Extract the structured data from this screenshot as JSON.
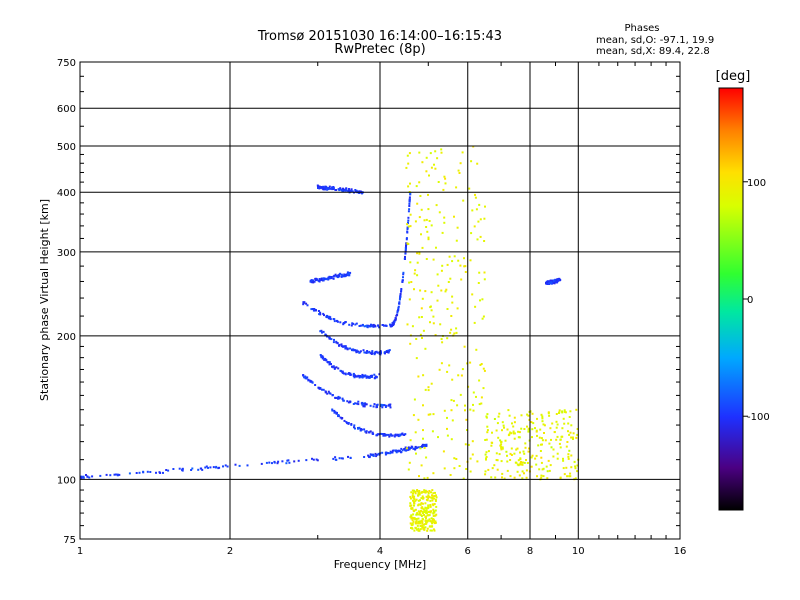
{
  "chart_data": {
    "type": "scatter",
    "title": "Tromsø 20151030 16:14:00–16:15:43",
    "subtitle": "RwPretec (8p)",
    "xlabel": "Frequency [MHz]",
    "ylabel": "Stationary phase Virtual Height [km]",
    "x_scale": "log",
    "y_scale": "log",
    "xlim": [
      1,
      16
    ],
    "ylim": [
      75,
      750
    ],
    "x_ticks": [
      1,
      2,
      4,
      6,
      8,
      10,
      16
    ],
    "x_tick_labels": [
      "1",
      "2",
      "4",
      "6",
      "8",
      "10",
      "16"
    ],
    "y_ticks": [
      75,
      100,
      200,
      300,
      400,
      500,
      600,
      750
    ],
    "y_tick_labels": [
      "75",
      "100",
      "200",
      "300",
      "400",
      "500",
      "600",
      "750"
    ],
    "grid": true,
    "legend": {
      "heading": "Phases",
      "lines": [
        "mean, sd,O: -97.1, 19.9",
        "mean, sd,X: 89.4, 22.8"
      ]
    },
    "colorbar": {
      "label": "[deg]",
      "range": [
        -180,
        180
      ],
      "ticks": [
        -100,
        0,
        100
      ],
      "tick_labels": [
        "-100",
        "0",
        "100"
      ]
    },
    "series": [
      {
        "mode": "O",
        "phase_mean": -97.1,
        "phase_sd": 19.9,
        "traces": [
          {
            "f_start": 1.0,
            "f_end": 3.8,
            "h_start": 101,
            "h_end": 112,
            "shape": "flat"
          },
          {
            "f_start": 3.8,
            "f_end": 5.0,
            "h_start": 112,
            "h_end": 118,
            "shape": "flat"
          },
          {
            "f_start": 2.8,
            "f_end": 4.3,
            "h_start": 210,
            "h_end": 207,
            "shape": "bowl"
          },
          {
            "f_start": 4.2,
            "f_end": 4.6,
            "h_start": 210,
            "h_end": 400,
            "shape": "rise"
          },
          {
            "f_start": 3.0,
            "f_end": 4.2,
            "h_start": 185,
            "h_end": 182,
            "shape": "bowl"
          },
          {
            "f_start": 3.0,
            "f_end": 4.0,
            "h_start": 165,
            "h_end": 162,
            "shape": "bowl"
          },
          {
            "f_start": 2.8,
            "f_end": 4.2,
            "h_start": 148,
            "h_end": 140,
            "shape": "bowl"
          },
          {
            "f_start": 3.2,
            "f_end": 4.5,
            "h_start": 125,
            "h_end": 122,
            "shape": "bowl"
          },
          {
            "f_start": 3.0,
            "f_end": 3.7,
            "h_start": 410,
            "h_end": 400,
            "shape": "flat"
          },
          {
            "f_start": 2.9,
            "f_end": 3.5,
            "h_start": 260,
            "h_end": 270,
            "shape": "flat"
          },
          {
            "f_start": 8.6,
            "f_end": 9.2,
            "h_start": 258,
            "h_end": 262,
            "shape": "flat"
          }
        ]
      },
      {
        "mode": "X",
        "phase_mean": 89.4,
        "phase_sd": 22.8,
        "traces": [
          {
            "f_start": 4.5,
            "f_end": 6.5,
            "h_start": 100,
            "h_end": 500,
            "shape": "scatter"
          },
          {
            "f_start": 6.5,
            "f_end": 10.0,
            "h_start": 100,
            "h_end": 140,
            "shape": "scatter"
          },
          {
            "f_start": 4.6,
            "f_end": 5.2,
            "h_start": 78,
            "h_end": 95,
            "shape": "scatter"
          }
        ]
      }
    ]
  }
}
